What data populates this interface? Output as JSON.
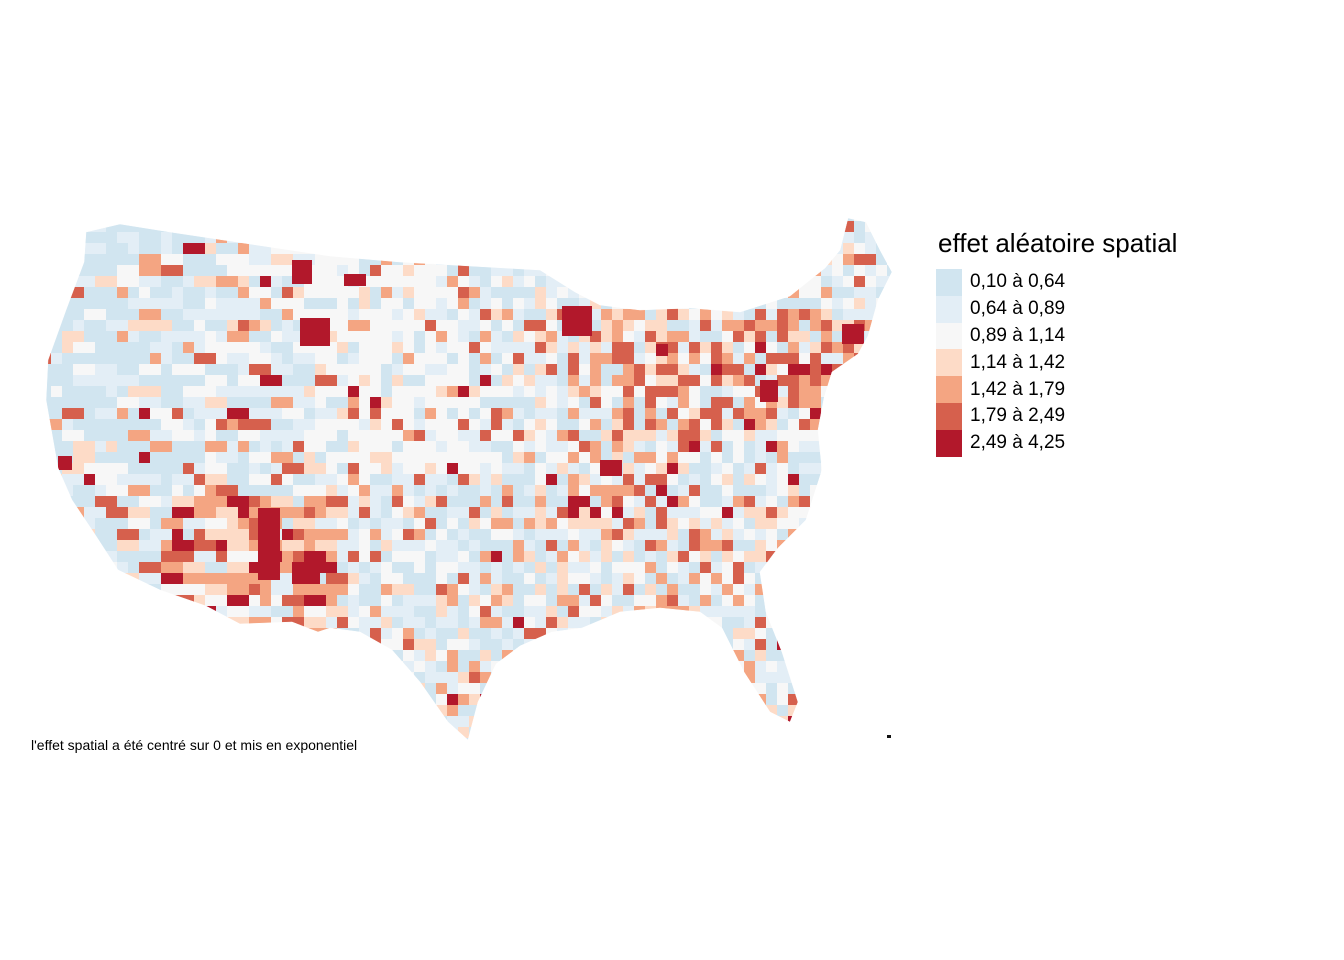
{
  "map": {
    "legend": {
      "title": "effet aléatoire spatial",
      "classes": [
        {
          "label": "0,10 à 0,64",
          "color": "#d1e5f0"
        },
        {
          "label": "0,64 à 0,89",
          "color": "#e3eef6"
        },
        {
          "label": "0,89 à 1,14",
          "color": "#f7f7f7"
        },
        {
          "label": "1,14 à 1,42",
          "color": "#fddbc7"
        },
        {
          "label": "1,42 à 1,79",
          "color": "#f4a582"
        },
        {
          "label": "1,79 à 2,49",
          "color": "#d6604d"
        },
        {
          "label": "2,49 à 4,25",
          "color": "#b2182b"
        }
      ]
    },
    "caption": "l'effet spatial a été centré sur 0 et mis en exponentiel"
  }
}
